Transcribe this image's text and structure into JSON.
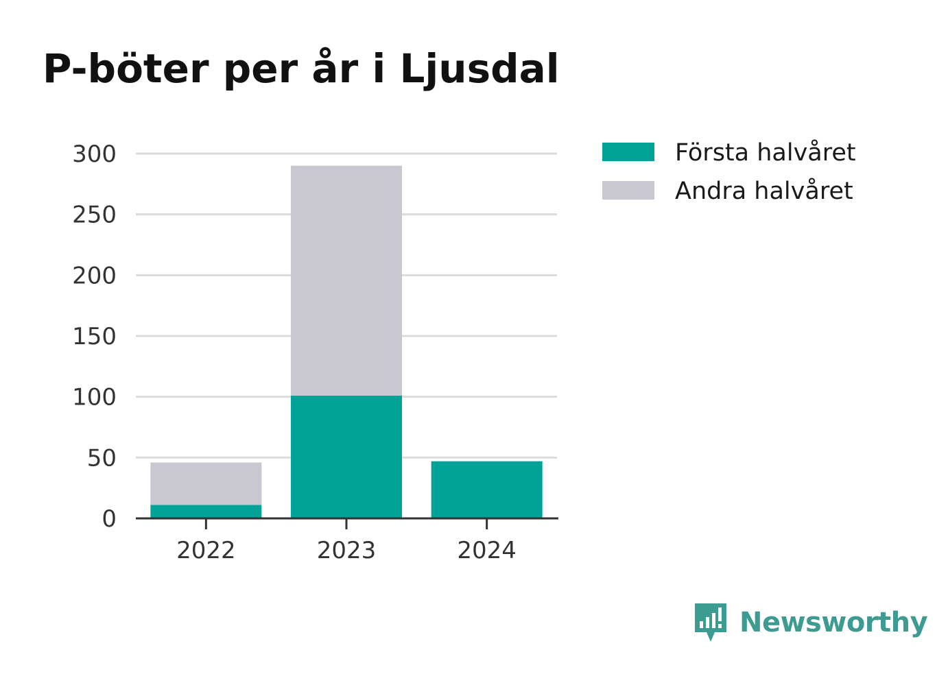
{
  "chart_data": {
    "type": "bar",
    "stacked": true,
    "title": "P-böter per år i Ljusdal",
    "xlabel": "",
    "ylabel": "",
    "categories": [
      "2022",
      "2023",
      "2024"
    ],
    "series": [
      {
        "name": "Första halvåret",
        "color": "#00a398",
        "values": [
          11,
          101,
          47
        ]
      },
      {
        "name": "Andra halvåret",
        "color": "#c8c8d2",
        "values": [
          35,
          189,
          0
        ]
      }
    ],
    "ylim": [
      0,
      300
    ],
    "yticks": [
      "0",
      "50",
      "100",
      "150",
      "200",
      "250",
      "300"
    ],
    "grid": true,
    "legend_position": "right-top"
  },
  "brand": {
    "name": "Newsworthy",
    "icon": "newsworthy-logo-icon",
    "color": "#3e9b91"
  }
}
